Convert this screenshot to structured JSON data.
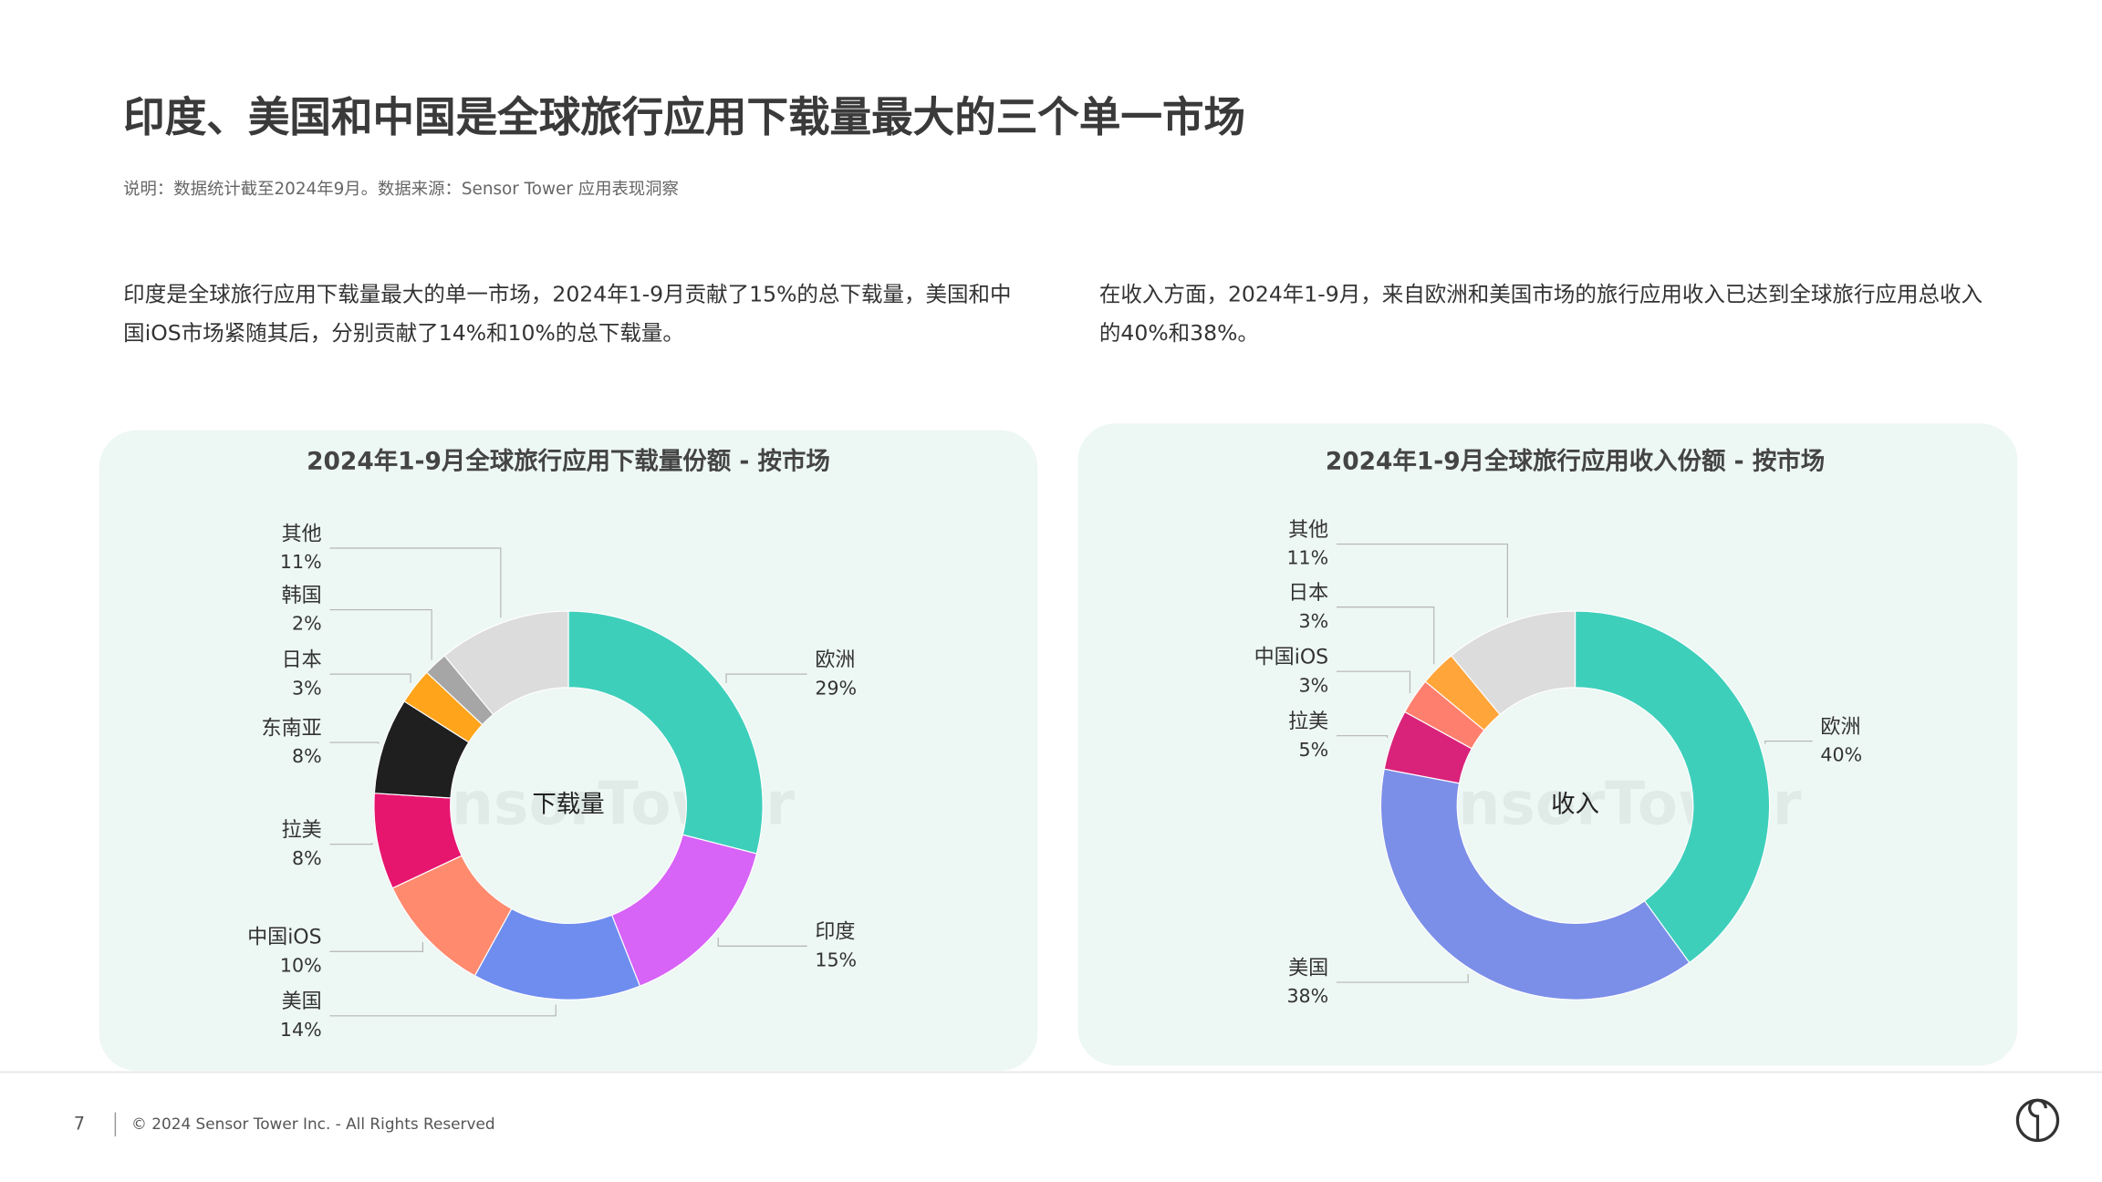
{
  "header": {
    "title": "印度、美国和中国是全球旅行应用下载量最大的三个单一市场",
    "note": "说明：数据统计截至2024年9月。数据来源：Sensor Tower 应用表现洞察"
  },
  "paragraphs": [
    "印度是全球旅行应用下载量最大的单一市场，2024年1-9月贡献了15%的总下载量，美国和中国iOS市场紧随其后，分别贡献了14%和10%的总下载量。",
    "在收入方面，2024年1-9月，来自欧洲和美国市场的旅行应用收入已达到全球旅行应用总收入的40%和38%。"
  ],
  "chart_data": [
    {
      "type": "pie",
      "title": "2024年1-9月全球旅行应用下载量份额 - 按市场",
      "center_label": "下载量",
      "watermark": "SensorTower",
      "categories": [
        "欧洲",
        "印度",
        "美国",
        "中国iOS",
        "拉美",
        "东南亚",
        "日本",
        "韩国",
        "其他"
      ],
      "values": [
        29,
        15,
        14,
        10,
        8,
        8,
        3,
        2,
        11
      ],
      "value_labels": [
        "29%",
        "15%",
        "14%",
        "10%",
        "8%",
        "8%",
        "3%",
        "2%",
        "11%"
      ],
      "colors": [
        "#3ecfbb",
        "#d763f7",
        "#6f8def",
        "#ff8a6e",
        "#e6166f",
        "#1f1f1f",
        "#ffa41b",
        "#a6a6a6",
        "#dcdcdc"
      ]
    },
    {
      "type": "pie",
      "title": "2024年1-9月全球旅行应用收入份额 - 按市场",
      "center_label": "收入",
      "watermark": "SensorTower",
      "categories": [
        "欧洲",
        "美国",
        "拉美",
        "中国iOS",
        "日本",
        "其他"
      ],
      "values": [
        40,
        38,
        5,
        3,
        3,
        11
      ],
      "value_labels": [
        "40%",
        "38%",
        "5%",
        "3%",
        "3%",
        "11%"
      ],
      "colors": [
        "#3ecfbb",
        "#7b8fe8",
        "#d9237a",
        "#ff7f6e",
        "#ffa53a",
        "#dcdcdc"
      ]
    }
  ],
  "footer": {
    "page_number": "7",
    "copyright": "© 2024 Sensor Tower Inc. - All Rights Reserved"
  }
}
